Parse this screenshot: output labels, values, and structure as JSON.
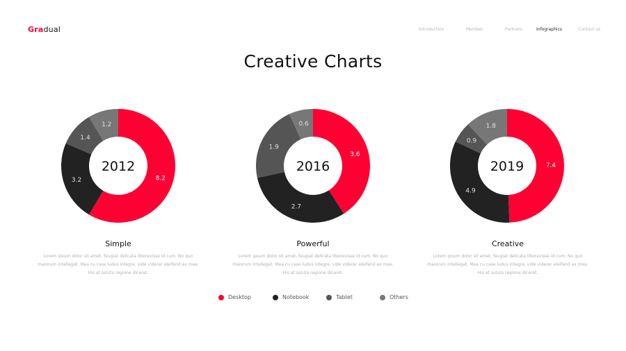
{
  "header": {
    "logo_accent": "Gra",
    "logo_rest": "dual",
    "nav": [
      "Introduction",
      "Member",
      "Partners",
      "Infographics",
      "Contact us"
    ],
    "active_nav": "Infographics"
  },
  "title": "Creative Charts",
  "colors": {
    "accent": "#ff0033",
    "desktop": "#ff0033",
    "notebook": "#222222",
    "tablet": "#555555",
    "others": "#777777"
  },
  "cards": [
    {
      "title": "Simple",
      "desc": [
        "Lorem ipsum dolor sit amet, feugiat delicata liberavisse id cum. No quo",
        "maiorum intelleget. Mea cu case ludus integre, vide viderer eleifend ex mea.",
        "His at soluta regione diceret."
      ]
    },
    {
      "title": "Powerful",
      "desc": [
        "Lorem ipsum dolor sit amet, feugiat delicata liberavisse id cum. No quo",
        "maiorum intelleget. Mea cu case ludus integre, vide viderer eleifend ex mea.",
        "His at soluta regione diceret."
      ]
    },
    {
      "title": "Creative",
      "desc": [
        "Lorem ipsum dolor sit amet, feugiat delicata liberavisse id cum. No quo",
        "maiorum intelleget. Mea cu case ludus integre, vide viderer eleifend ex mea.",
        "His at soluta regione diceret."
      ]
    }
  ],
  "chart_data": [
    {
      "type": "pie",
      "title": "2012",
      "categories": [
        "Desktop",
        "Notebook",
        "Tablet",
        "Others"
      ],
      "values": [
        8.2,
        3.2,
        1.4,
        1.2
      ]
    },
    {
      "type": "pie",
      "title": "2016",
      "categories": [
        "Desktop",
        "Notebook",
        "Tablet",
        "Others"
      ],
      "values": [
        3.6,
        2.7,
        1.9,
        0.6
      ]
    },
    {
      "type": "pie",
      "title": "2019",
      "categories": [
        "Desktop",
        "Notebook",
        "Tablet",
        "Others"
      ],
      "values": [
        7.4,
        4.9,
        0.9,
        1.8
      ]
    }
  ],
  "legend": [
    "Desktop",
    "Notebook",
    "Tablet",
    "Others"
  ]
}
